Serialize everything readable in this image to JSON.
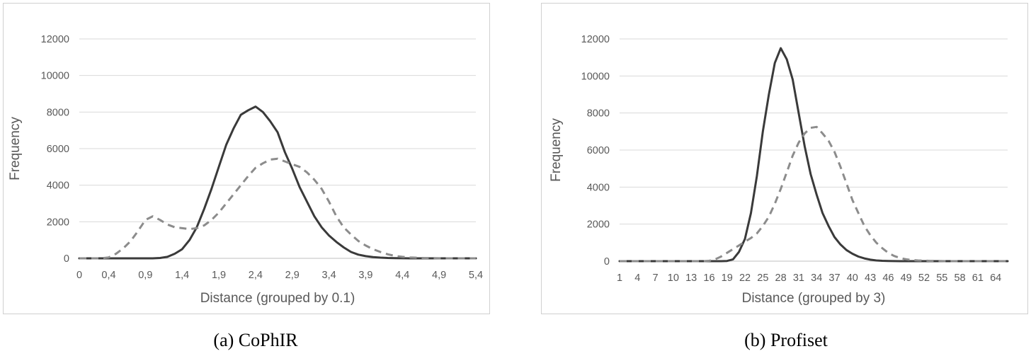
{
  "chart_data": [
    {
      "type": "line",
      "caption": "(a) CoPhIR",
      "xlabel": "Distance (grouped by 0.1)",
      "ylabel": "Frequency",
      "ylim": [
        0,
        12000
      ],
      "yticks": [
        0,
        2000,
        4000,
        6000,
        8000,
        10000,
        12000
      ],
      "x": [
        0,
        0.1,
        0.2,
        0.3,
        0.4,
        0.5,
        0.6,
        0.7,
        0.8,
        0.9,
        1.0,
        1.1,
        1.2,
        1.3,
        1.4,
        1.5,
        1.6,
        1.7,
        1.8,
        1.9,
        2.0,
        2.1,
        2.2,
        2.3,
        2.4,
        2.5,
        2.6,
        2.7,
        2.8,
        2.9,
        3.0,
        3.1,
        3.2,
        3.3,
        3.4,
        3.5,
        3.6,
        3.7,
        3.8,
        3.9,
        4.0,
        4.1,
        4.2,
        4.3,
        4.4,
        4.5,
        4.6,
        4.7,
        4.8,
        4.9,
        5.0,
        5.1,
        5.2,
        5.3,
        5.4
      ],
      "xticklabels": [
        "0",
        "0,4",
        "0,9",
        "1,4",
        "1,9",
        "2,4",
        "2,9",
        "3,4",
        "3,9",
        "4,4",
        "4,9",
        "5,4"
      ],
      "xtick_positions": [
        0,
        0.4,
        0.9,
        1.4,
        1.9,
        2.4,
        2.9,
        3.4,
        3.9,
        4.4,
        4.9,
        5.4
      ],
      "grid": true,
      "series": [
        {
          "style": "solid",
          "color": "#3a3a3a",
          "values": [
            0,
            0,
            0,
            0,
            0,
            0,
            0,
            0,
            0,
            0,
            0,
            20,
            80,
            250,
            500,
            1000,
            1700,
            2700,
            3800,
            5000,
            6200,
            7100,
            7850,
            8100,
            8300,
            8000,
            7500,
            6900,
            5800,
            4900,
            3900,
            3100,
            2300,
            1700,
            1250,
            900,
            600,
            350,
            200,
            120,
            70,
            40,
            20,
            10,
            5,
            0,
            0,
            0,
            0,
            0,
            0,
            0,
            0,
            0,
            0
          ]
        },
        {
          "style": "dashed",
          "color": "#8c8c8c",
          "values": [
            0,
            0,
            0,
            0,
            50,
            250,
            550,
            950,
            1500,
            2100,
            2300,
            2100,
            1850,
            1700,
            1650,
            1600,
            1650,
            1800,
            2100,
            2500,
            3000,
            3500,
            4000,
            4500,
            4950,
            5200,
            5400,
            5450,
            5300,
            5150,
            5000,
            4700,
            4300,
            3800,
            3100,
            2300,
            1700,
            1300,
            950,
            700,
            500,
            350,
            220,
            130,
            80,
            50,
            30,
            15,
            10,
            5,
            0,
            0,
            0,
            0,
            0
          ]
        }
      ]
    },
    {
      "type": "line",
      "caption": "(b) Profiset",
      "xlabel": "Distance (grouped by 3)",
      "ylabel": "Frequency",
      "ylim": [
        0,
        12000
      ],
      "yticks": [
        0,
        2000,
        4000,
        6000,
        8000,
        10000,
        12000
      ],
      "x": [
        1,
        2,
        3,
        4,
        5,
        6,
        7,
        8,
        9,
        10,
        11,
        12,
        13,
        14,
        15,
        16,
        17,
        18,
        19,
        20,
        21,
        22,
        23,
        24,
        25,
        26,
        27,
        28,
        29,
        30,
        31,
        32,
        33,
        34,
        35,
        36,
        37,
        38,
        39,
        40,
        41,
        42,
        43,
        44,
        45,
        46,
        47,
        48,
        49,
        50,
        51,
        52,
        53,
        54,
        55,
        56,
        57,
        58,
        59,
        60,
        61,
        62,
        63,
        64,
        65,
        66
      ],
      "xticklabels": [
        "1",
        "4",
        "7",
        "10",
        "13",
        "16",
        "19",
        "22",
        "25",
        "28",
        "31",
        "34",
        "37",
        "40",
        "43",
        "46",
        "49",
        "52",
        "55",
        "58",
        "61",
        "64"
      ],
      "xtick_positions": [
        1,
        4,
        7,
        10,
        13,
        16,
        19,
        22,
        25,
        28,
        31,
        34,
        37,
        40,
        43,
        46,
        49,
        52,
        55,
        58,
        61,
        64
      ],
      "grid": true,
      "series": [
        {
          "style": "solid",
          "color": "#3a3a3a",
          "values": [
            0,
            0,
            0,
            0,
            0,
            0,
            0,
            0,
            0,
            0,
            0,
            0,
            0,
            0,
            0,
            0,
            0,
            0,
            10,
            100,
            500,
            1200,
            2600,
            4600,
            7000,
            9000,
            10700,
            11500,
            10900,
            9800,
            8000,
            6200,
            4700,
            3600,
            2600,
            1900,
            1300,
            900,
            600,
            400,
            250,
            150,
            80,
            40,
            20,
            10,
            5,
            0,
            0,
            0,
            0,
            0,
            0,
            0,
            0,
            0,
            0,
            0,
            0,
            0,
            0,
            0,
            0,
            0,
            0,
            0
          ]
        },
        {
          "style": "dashed",
          "color": "#8c8c8c",
          "values": [
            0,
            0,
            0,
            0,
            0,
            0,
            0,
            0,
            0,
            0,
            0,
            0,
            0,
            0,
            0,
            20,
            100,
            250,
            450,
            650,
            850,
            1050,
            1250,
            1500,
            1900,
            2400,
            3100,
            3900,
            4800,
            5700,
            6400,
            6900,
            7200,
            7250,
            6900,
            6500,
            5900,
            5100,
            4200,
            3300,
            2600,
            1900,
            1400,
            1000,
            700,
            450,
            280,
            170,
            100,
            60,
            40,
            25,
            15,
            10,
            5,
            0,
            0,
            0,
            0,
            0,
            0,
            0,
            0,
            0,
            0,
            0
          ]
        }
      ]
    }
  ]
}
